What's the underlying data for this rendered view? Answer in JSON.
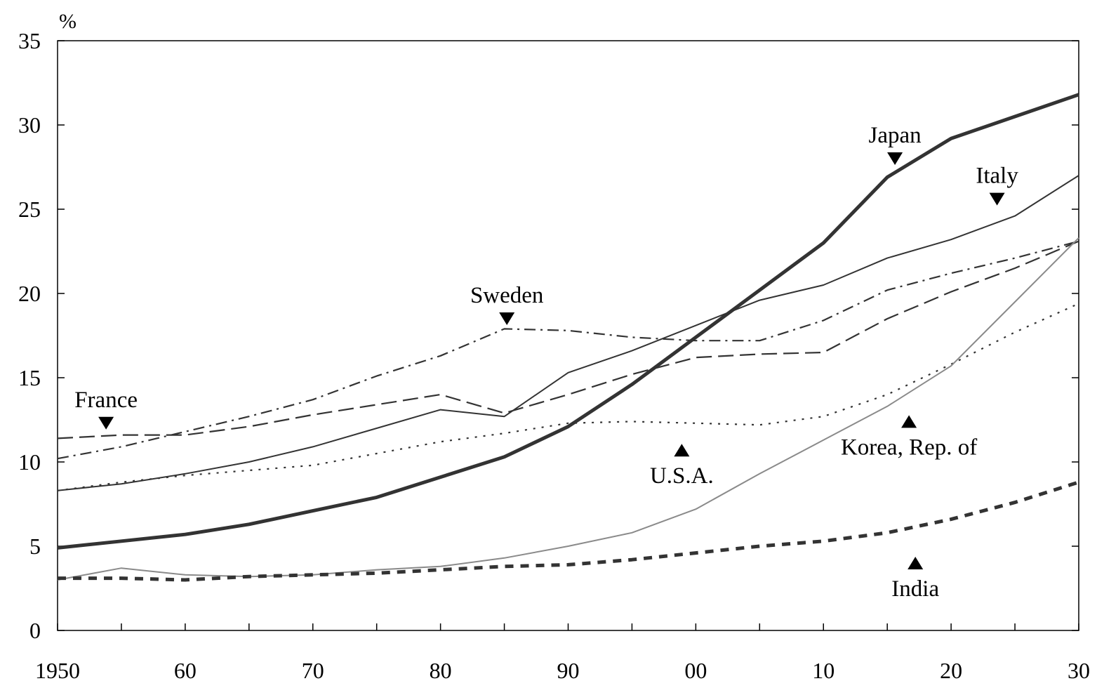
{
  "chart_data": {
    "type": "line",
    "unit_label": "%",
    "x": [
      1950,
      1955,
      1960,
      1965,
      1970,
      1975,
      1980,
      1985,
      1990,
      1995,
      2000,
      2005,
      2010,
      2015,
      2020,
      2025,
      2030
    ],
    "xlim": [
      1950,
      2030
    ],
    "ylim": [
      0,
      35
    ],
    "x_ticks": [
      {
        "value": 1950,
        "label": "1950"
      },
      {
        "value": 1960,
        "label": "60"
      },
      {
        "value": 1970,
        "label": "70"
      },
      {
        "value": 1980,
        "label": "80"
      },
      {
        "value": 1990,
        "label": "90"
      },
      {
        "value": 2000,
        "label": "00"
      },
      {
        "value": 2010,
        "label": "10"
      },
      {
        "value": 2020,
        "label": "20"
      },
      {
        "value": 2030,
        "label": "30"
      }
    ],
    "y_ticks": [
      {
        "value": 0,
        "label": "0"
      },
      {
        "value": 5,
        "label": "5"
      },
      {
        "value": 10,
        "label": "10"
      },
      {
        "value": 15,
        "label": "15"
      },
      {
        "value": 20,
        "label": "20"
      },
      {
        "value": 25,
        "label": "25"
      },
      {
        "value": 30,
        "label": "30"
      },
      {
        "value": 35,
        "label": "35"
      }
    ],
    "grid": false,
    "series": [
      {
        "name": "Japan",
        "color": "#333333",
        "style": "solid-thick",
        "values": [
          4.9,
          5.3,
          5.7,
          6.3,
          7.1,
          7.9,
          9.1,
          10.3,
          12.1,
          14.6,
          17.4,
          20.2,
          23.0,
          26.9,
          29.2,
          30.5,
          31.8
        ]
      },
      {
        "name": "Italy",
        "color": "#333333",
        "style": "solid",
        "values": [
          8.3,
          8.7,
          9.3,
          10.0,
          10.9,
          12.0,
          13.1,
          12.7,
          15.3,
          16.6,
          18.1,
          19.6,
          20.5,
          22.1,
          23.2,
          24.6,
          27.0
        ]
      },
      {
        "name": "Sweden",
        "color": "#333333",
        "style": "dash-dot",
        "values": [
          10.2,
          10.9,
          11.8,
          12.7,
          13.7,
          15.1,
          16.3,
          17.9,
          17.8,
          17.4,
          17.2,
          17.2,
          18.4,
          20.2,
          21.2,
          22.1,
          23.1
        ]
      },
      {
        "name": "France",
        "color": "#333333",
        "style": "long-dash",
        "values": [
          11.4,
          11.6,
          11.6,
          12.1,
          12.8,
          13.4,
          14.0,
          12.9,
          14.0,
          15.2,
          16.2,
          16.4,
          16.5,
          18.5,
          20.1,
          21.5,
          23.1
        ]
      },
      {
        "name": "U.S.A.",
        "color": "#333333",
        "style": "dot",
        "values": [
          8.3,
          8.8,
          9.2,
          9.5,
          9.8,
          10.5,
          11.2,
          11.7,
          12.3,
          12.4,
          12.3,
          12.2,
          12.7,
          14.0,
          15.8,
          17.7,
          19.4
        ]
      },
      {
        "name": "Korea, Rep. of",
        "color": "#8a8a8a",
        "style": "solid-thin",
        "values": [
          3.0,
          3.7,
          3.3,
          3.2,
          3.3,
          3.6,
          3.8,
          4.3,
          5.0,
          5.8,
          7.2,
          9.3,
          11.3,
          13.3,
          15.7,
          19.5,
          23.3
        ]
      },
      {
        "name": "India",
        "color": "#333333",
        "style": "short-dash-thick",
        "values": [
          3.1,
          3.1,
          3.0,
          3.2,
          3.3,
          3.4,
          3.6,
          3.8,
          3.9,
          4.2,
          4.6,
          5.0,
          5.3,
          5.8,
          6.6,
          7.6,
          8.8
        ]
      }
    ],
    "annotations": [
      {
        "series": "France",
        "text": "France",
        "arrow": "down",
        "x": 1953.8,
        "y": 12.3
      },
      {
        "series": "Sweden",
        "text": "Sweden",
        "arrow": "down",
        "x": 1985.2,
        "y": 18.5
      },
      {
        "series": "Japan",
        "text": "Japan",
        "arrow": "down",
        "x": 2015.6,
        "y": 28.0
      },
      {
        "series": "Italy",
        "text": "Italy",
        "arrow": "down",
        "x": 2023.6,
        "y": 25.6
      },
      {
        "series": "U.S.A.",
        "text": "U.S.A.",
        "arrow": "up",
        "x": 1998.9,
        "y": 10.7
      },
      {
        "series": "Korea, Rep. of",
        "text": "Korea, Rep. of",
        "arrow": "up",
        "x": 2016.7,
        "y": 12.4
      },
      {
        "series": "India",
        "text": "India",
        "arrow": "up",
        "x": 2017.2,
        "y": 4.0
      }
    ]
  }
}
